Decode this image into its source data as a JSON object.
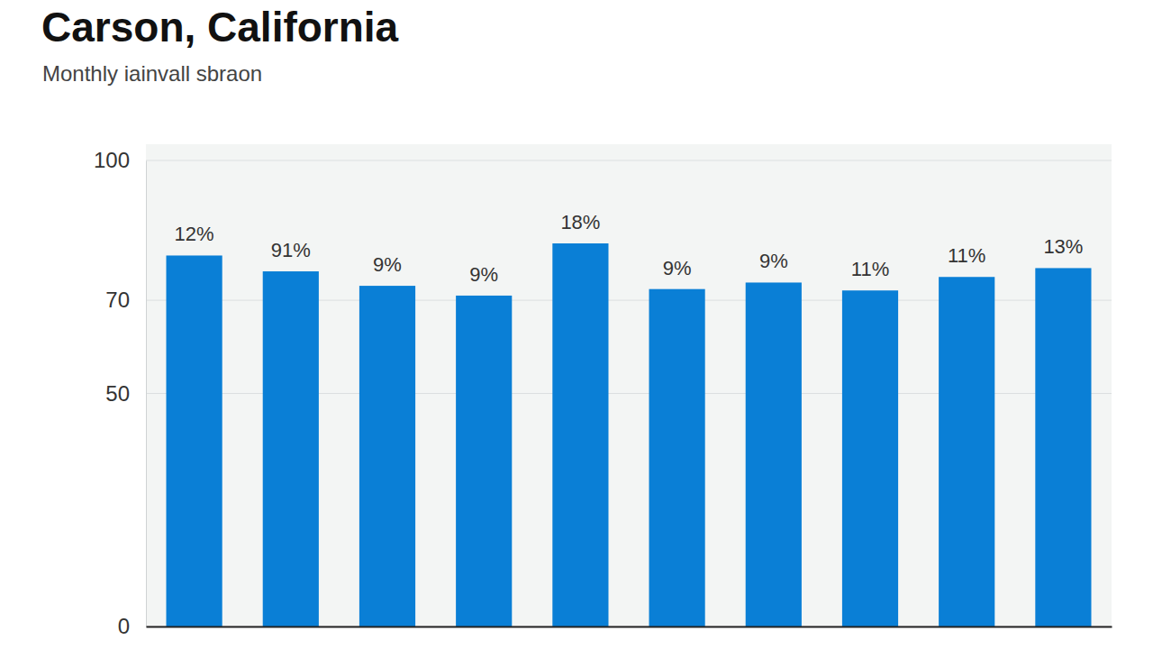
{
  "chart_data": {
    "type": "bar",
    "title": "Carson, California",
    "subtitle": "Monthly iainvall sbraon",
    "categories": [
      null,
      null,
      null,
      null,
      null,
      null,
      null,
      null,
      null,
      null
    ],
    "values": [
      79.6,
      76.2,
      73.1,
      71.0,
      82.2,
      72.4,
      73.8,
      72.1,
      75.0,
      76.9
    ],
    "color": "#0a7fd6",
    "ylim": [
      0,
      100
    ],
    "yticks": [
      0,
      50,
      70,
      100
    ],
    "grid": true,
    "annotations": [
      "12%",
      "91%",
      "9%",
      "9%",
      "18%",
      "9%",
      "9%",
      "11%",
      "11%",
      "13%"
    ]
  }
}
